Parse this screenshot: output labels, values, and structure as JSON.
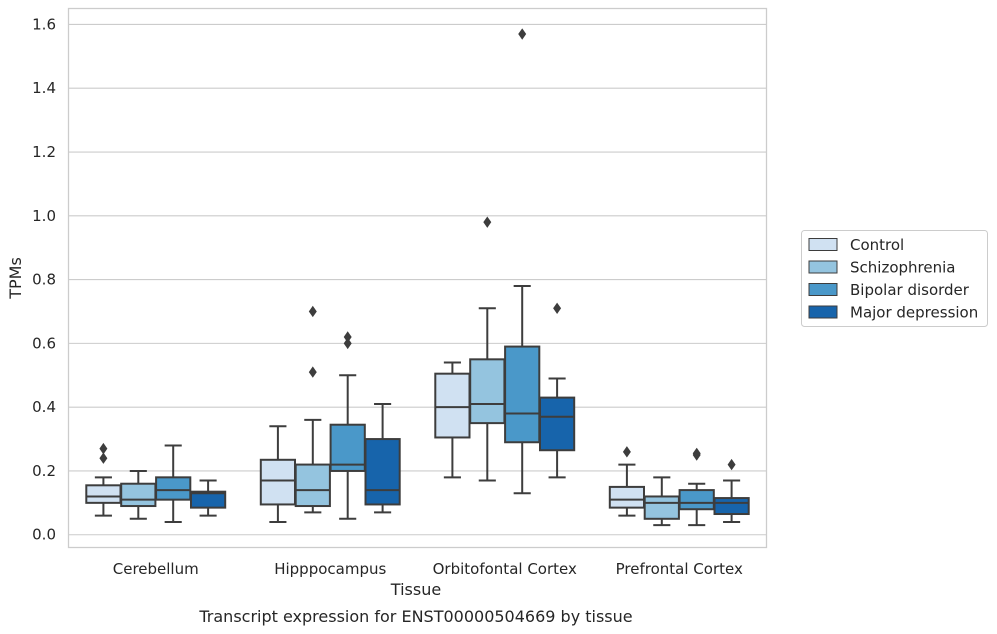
{
  "chart_data": {
    "type": "box",
    "caption": "Transcript expression for ENST00000504669 by tissue",
    "xlabel": "Tissue",
    "ylabel": "TPMs",
    "ylim": [
      -0.04,
      1.65
    ],
    "yticks": [
      0.0,
      0.2,
      0.4,
      0.6,
      0.8,
      1.0,
      1.2,
      1.4,
      1.6
    ],
    "ytick_labels": [
      "0.0",
      "0.2",
      "0.4",
      "0.6",
      "0.8",
      "1.0",
      "1.2",
      "1.4",
      "1.6"
    ],
    "grid": "horizontal",
    "legend_position": "right",
    "categories": [
      "Cerebellum",
      "Hipppocampus",
      "Orbitofontal Cortex",
      "Prefrontal Cortex"
    ],
    "series": [
      {
        "name": "Control",
        "color": "#d0e1f2",
        "boxes": [
          {
            "whislo": 0.06,
            "q1": 0.1,
            "med": 0.12,
            "q3": 0.155,
            "whishi": 0.18,
            "fliers": [
              0.24,
              0.27
            ]
          },
          {
            "whislo": 0.04,
            "q1": 0.095,
            "med": 0.17,
            "q3": 0.235,
            "whishi": 0.34,
            "fliers": []
          },
          {
            "whislo": 0.18,
            "q1": 0.305,
            "med": 0.4,
            "q3": 0.505,
            "whishi": 0.54,
            "fliers": []
          },
          {
            "whislo": 0.06,
            "q1": 0.085,
            "med": 0.11,
            "q3": 0.15,
            "whishi": 0.22,
            "fliers": [
              0.26
            ]
          }
        ]
      },
      {
        "name": "Schizophrenia",
        "color": "#94c4df",
        "boxes": [
          {
            "whislo": 0.05,
            "q1": 0.09,
            "med": 0.11,
            "q3": 0.16,
            "whishi": 0.2,
            "fliers": []
          },
          {
            "whislo": 0.07,
            "q1": 0.09,
            "med": 0.14,
            "q3": 0.22,
            "whishi": 0.36,
            "fliers": [
              0.51,
              0.7
            ]
          },
          {
            "whislo": 0.17,
            "q1": 0.35,
            "med": 0.41,
            "q3": 0.55,
            "whishi": 0.71,
            "fliers": [
              0.98
            ]
          },
          {
            "whislo": 0.03,
            "q1": 0.05,
            "med": 0.1,
            "q3": 0.12,
            "whishi": 0.18,
            "fliers": []
          }
        ]
      },
      {
        "name": "Bipolar disorder",
        "color": "#4a98c9",
        "boxes": [
          {
            "whislo": 0.04,
            "q1": 0.11,
            "med": 0.14,
            "q3": 0.18,
            "whishi": 0.28,
            "fliers": []
          },
          {
            "whislo": 0.05,
            "q1": 0.2,
            "med": 0.22,
            "q3": 0.345,
            "whishi": 0.5,
            "fliers": [
              0.6,
              0.62
            ]
          },
          {
            "whislo": 0.13,
            "q1": 0.29,
            "med": 0.38,
            "q3": 0.59,
            "whishi": 0.78,
            "fliers": [
              1.57
            ]
          },
          {
            "whislo": 0.03,
            "q1": 0.08,
            "med": 0.1,
            "q3": 0.14,
            "whishi": 0.16,
            "fliers": [
              0.25,
              0.255
            ]
          }
        ]
      },
      {
        "name": "Major depression",
        "color": "#1764ab",
        "boxes": [
          {
            "whislo": 0.06,
            "q1": 0.085,
            "med": 0.13,
            "q3": 0.135,
            "whishi": 0.17,
            "fliers": []
          },
          {
            "whislo": 0.07,
            "q1": 0.095,
            "med": 0.14,
            "q3": 0.3,
            "whishi": 0.41,
            "fliers": []
          },
          {
            "whislo": 0.18,
            "q1": 0.265,
            "med": 0.37,
            "q3": 0.43,
            "whishi": 0.49,
            "fliers": [
              0.71
            ]
          },
          {
            "whislo": 0.04,
            "q1": 0.065,
            "med": 0.1,
            "q3": 0.115,
            "whishi": 0.17,
            "fliers": [
              0.22
            ]
          }
        ]
      }
    ]
  }
}
